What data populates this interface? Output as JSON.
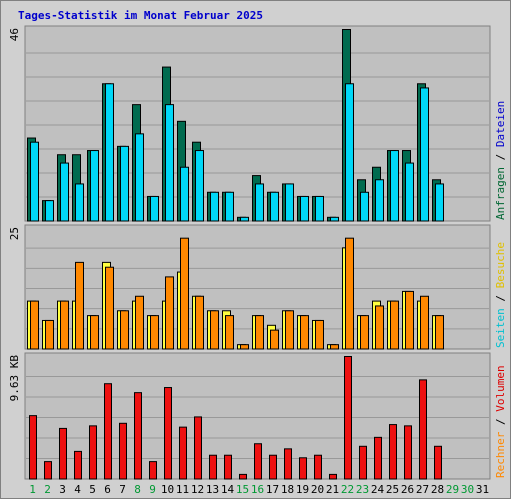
{
  "chart_data": {
    "type": "bar",
    "title": "Tages-Statistik im Monat Februar 2025",
    "categories": [
      "1",
      "2",
      "3",
      "4",
      "5",
      "6",
      "7",
      "8",
      "9",
      "10",
      "11",
      "12",
      "13",
      "14",
      "15",
      "16",
      "17",
      "18",
      "19",
      "20",
      "21",
      "22",
      "23",
      "24",
      "25",
      "26",
      "27",
      "28",
      "29",
      "30",
      "31"
    ],
    "weekend_days": [
      "1",
      "2",
      "8",
      "9",
      "15",
      "16",
      "22",
      "23",
      "29",
      "30"
    ],
    "panels": [
      {
        "name": "requests",
        "max_label": "46",
        "ylim": [
          0,
          46
        ],
        "legend": [
          {
            "text": "Anfragen",
            "color": "#006633"
          },
          {
            "text": "Dateien",
            "color": "#0000cc"
          }
        ],
        "series": [
          {
            "name": "Anfragen",
            "color": "#006b4f",
            "values": [
              20,
              5,
              16,
              16,
              17,
              33,
              18,
              28,
              6,
              37,
              24,
              19,
              7,
              7,
              1,
              11,
              7,
              9,
              6,
              6,
              1,
              46,
              10,
              13,
              17,
              17,
              33,
              10,
              null,
              null,
              null
            ]
          },
          {
            "name": "Dateien",
            "color": "#00d8f8",
            "values": [
              19,
              5,
              14,
              9,
              17,
              33,
              18,
              21,
              6,
              28,
              13,
              17,
              7,
              7,
              1,
              9,
              7,
              9,
              6,
              6,
              1,
              33,
              7,
              10,
              17,
              14,
              32,
              9,
              null,
              null,
              null
            ]
          }
        ]
      },
      {
        "name": "visits",
        "max_label": "25",
        "ylim": [
          0,
          25
        ],
        "legend": [
          {
            "text": "Seiten",
            "color": "#00c0d0"
          },
          {
            "text": "Besuche",
            "color": "#e0c000"
          }
        ],
        "series": [
          {
            "name": "Seiten",
            "color": "#ffff40",
            "values": [
              10,
              6,
              10,
              10,
              7,
              18,
              8,
              10,
              7,
              10,
              16,
              11,
              8,
              8,
              1,
              7,
              5,
              8,
              7,
              6,
              1,
              21,
              7,
              10,
              10,
              12,
              10,
              7,
              null,
              null,
              null
            ]
          },
          {
            "name": "Besuche",
            "color": "#ff8800",
            "values": [
              10,
              6,
              10,
              18,
              7,
              17,
              8,
              11,
              7,
              15,
              23,
              11,
              8,
              7,
              1,
              7,
              4,
              8,
              7,
              6,
              1,
              23,
              7,
              9,
              10,
              12,
              11,
              7,
              null,
              null,
              null
            ]
          }
        ]
      },
      {
        "name": "volume",
        "max_label": "9.63 KB",
        "ylim": [
          0,
          9.63
        ],
        "legend": [
          {
            "text": "Rechner",
            "color": "#ff8800"
          },
          {
            "text": "Volumen",
            "color": "#dd0000"
          }
        ],
        "series": [
          {
            "name": "Volumen",
            "color": "#ee1010",
            "values": [
              5.0,
              1.4,
              4.0,
              2.2,
              4.2,
              7.5,
              4.4,
              6.8,
              1.4,
              7.2,
              4.1,
              4.9,
              1.9,
              1.9,
              0.4,
              2.8,
              1.9,
              2.4,
              1.7,
              1.9,
              0.4,
              9.63,
              2.6,
              3.3,
              4.3,
              4.2,
              7.8,
              2.6,
              null,
              null,
              null
            ]
          }
        ]
      }
    ]
  }
}
